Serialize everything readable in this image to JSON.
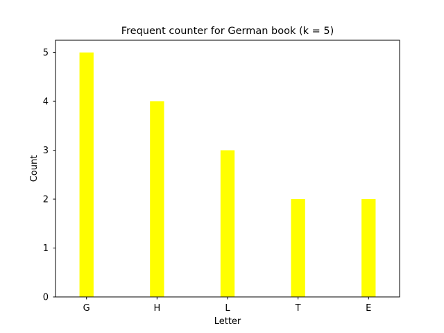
{
  "chart_data": {
    "type": "bar",
    "title": "Frequent counter for German book (k = 5)",
    "xlabel": "Letter",
    "ylabel": "Count",
    "categories": [
      "G",
      "H",
      "L",
      "T",
      "E"
    ],
    "values": [
      5,
      4,
      3,
      2,
      2
    ],
    "ylim": [
      0,
      5.25
    ],
    "yticks": [
      "0",
      "1",
      "2",
      "3",
      "4",
      "5"
    ],
    "grid": false,
    "legend": "none",
    "bar_color": "#ffff00"
  }
}
